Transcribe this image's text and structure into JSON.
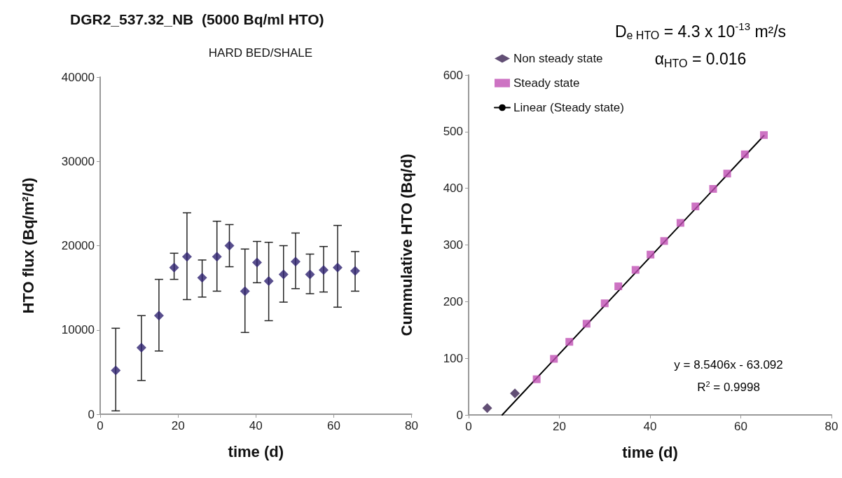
{
  "chart_data": [
    {
      "type": "scatter",
      "title": "DGR2_537.32_NB  (5000 Bq/ml HTO)",
      "subtitle": "HARD BED/SHALE",
      "xlabel": "time (d)",
      "ylabel": "HTO flux (Bq/m²/d)",
      "x": [
        4.0,
        10.6,
        15.1,
        19.0,
        22.3,
        26.2,
        30.0,
        33.2,
        37.2,
        40.3,
        43.3,
        47.1,
        50.2,
        53.9,
        57.4,
        61.0,
        65.5
      ],
      "values": [
        5200,
        7900,
        11700,
        17400,
        18700,
        16200,
        18700,
        20000,
        14600,
        18000,
        15800,
        16600,
        18100,
        16600,
        17100,
        17400,
        17000
      ],
      "errors": [
        [
          400,
          10200
        ],
        [
          4000,
          11700
        ],
        [
          7500,
          16000
        ],
        [
          16000,
          19100
        ],
        [
          13600,
          23900
        ],
        [
          13900,
          18300
        ],
        [
          14600,
          22900
        ],
        [
          17500,
          22500
        ],
        [
          9700,
          19600
        ],
        [
          15600,
          20500
        ],
        [
          11100,
          20400
        ],
        [
          13300,
          20000
        ],
        [
          14900,
          21500
        ],
        [
          14300,
          19000
        ],
        [
          14500,
          19900
        ],
        [
          12700,
          22400
        ],
        [
          14600,
          19300
        ]
      ],
      "color": "#2e2270",
      "marker": "diamond",
      "xlim": [
        0,
        80
      ],
      "xticks": [
        0,
        20,
        40,
        60,
        80
      ],
      "ylim": [
        0,
        40000
      ],
      "yticks": [
        0,
        10000,
        20000,
        30000,
        40000
      ],
      "grid": false,
      "legend": false
    },
    {
      "type": "scatter",
      "xlabel": "time (d)",
      "ylabel": "Cummulative HTO (Bq/d)",
      "annotations": [
        "D$_{e HTO}$ = 4.3 x 10$^{-13}$ m²/s",
        "α$_{HTO}$ = 0.016",
        "y = 8.5406x - 63.092",
        "R$^{2}$ = 0.9998"
      ],
      "series": [
        {
          "name": "Non steady state",
          "color": "#3b2352",
          "marker": "diamond",
          "x": [
            4.1,
            10.2
          ],
          "values": [
            12,
            38
          ]
        },
        {
          "name": "Steady state",
          "color": "#c050b4",
          "marker": "square",
          "x": [
            15.0,
            18.8,
            22.2,
            26.0,
            30.0,
            33.0,
            36.8,
            40.1,
            43.1,
            46.7,
            50.0,
            53.9,
            57.0,
            60.9,
            65.1
          ],
          "values": [
            63,
            99,
            129,
            161,
            197,
            227,
            256,
            283,
            307,
            339,
            368,
            399,
            426,
            460,
            494
          ]
        },
        {
          "name": "Linear (Steady state)",
          "type": "line",
          "color": "#000000",
          "marker": "none",
          "x": [
            7.4,
            65.1
          ],
          "values": [
            0,
            493
          ]
        }
      ],
      "xlim": [
        0,
        80
      ],
      "xticks": [
        0,
        20,
        40,
        60,
        80
      ],
      "ylim": [
        0,
        600
      ],
      "yticks": [
        0,
        100,
        200,
        300,
        400,
        500,
        600
      ],
      "grid": false,
      "legend": "top left"
    }
  ]
}
